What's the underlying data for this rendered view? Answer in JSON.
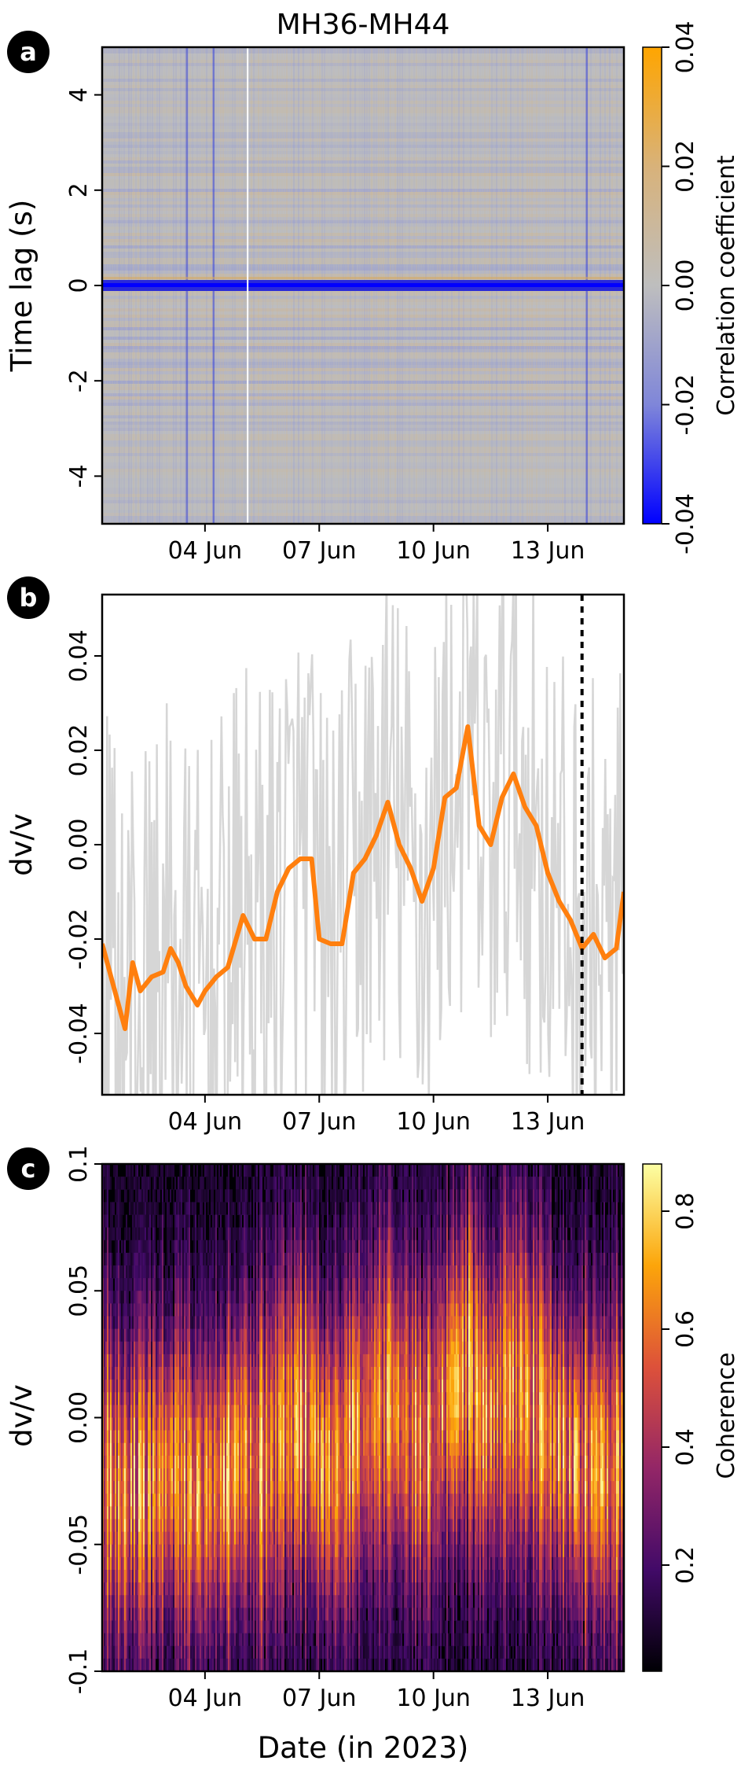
{
  "figure": {
    "title": "MH36-MH44",
    "xlabel": "Date (in 2023)",
    "date_ticks": [
      "04 Jun",
      "07 Jun",
      "10 Jun",
      "13 Jun"
    ],
    "date_tick_positions": [
      4,
      7,
      10,
      13
    ],
    "xlim": [
      1.3,
      15.0
    ]
  },
  "chart_data": [
    {
      "panel": "a",
      "type": "heatmap",
      "ylabel": "Time lag (s)",
      "ylim": [
        -5,
        5
      ],
      "yticks": [
        4,
        2,
        0,
        -2,
        -4
      ],
      "ytick_labels": [
        "4",
        "2",
        "0",
        "-2",
        "-4"
      ],
      "colorbar": {
        "label": "Correlation coefficient",
        "range": [
          -0.04,
          0.04
        ],
        "ticks": [
          "0.04",
          "0.02",
          "0.00",
          "-0.02",
          "-0.04"
        ],
        "tick_values": [
          0.04,
          0.02,
          0.0,
          -0.02,
          -0.04
        ],
        "colors": [
          "#0000ff",
          "#7f86d9",
          "#bebebe",
          "#d8b27a",
          "#ffa500"
        ]
      },
      "features": {
        "strong_negative_band_lag": 0.0,
        "gap_date": 5.1,
        "vertical_anomaly_dates": [
          3.5,
          4.2,
          14.0
        ]
      }
    },
    {
      "panel": "b",
      "type": "line",
      "ylabel": "dv/v",
      "ylim": [
        -0.053,
        0.053
      ],
      "yticks": [
        0.04,
        0.02,
        0.0,
        -0.02,
        -0.04
      ],
      "ytick_labels": [
        "0.04",
        "0.02",
        "0.00",
        "-0.02",
        "-0.04"
      ],
      "marker_line_date": 13.9,
      "series": [
        {
          "color": "#ff7f0e",
          "x": [
            1.3,
            1.6,
            1.9,
            2.1,
            2.3,
            2.6,
            2.9,
            3.1,
            3.3,
            3.5,
            3.8,
            4.0,
            4.3,
            4.6,
            5.0,
            5.3,
            5.6,
            5.9,
            6.2,
            6.5,
            6.8,
            7.0,
            7.3,
            7.6,
            7.9,
            8.2,
            8.5,
            8.8,
            9.1,
            9.4,
            9.7,
            10.0,
            10.3,
            10.6,
            10.9,
            11.2,
            11.5,
            11.8,
            12.1,
            12.4,
            12.7,
            13.0,
            13.3,
            13.6,
            13.9,
            14.2,
            14.5,
            14.8,
            15.0
          ],
          "values": [
            -0.021,
            -0.03,
            -0.039,
            -0.025,
            -0.031,
            -0.028,
            -0.027,
            -0.022,
            -0.025,
            -0.03,
            -0.034,
            -0.031,
            -0.028,
            -0.026,
            -0.015,
            -0.02,
            -0.02,
            -0.01,
            -0.005,
            -0.003,
            -0.003,
            -0.02,
            -0.021,
            -0.021,
            -0.006,
            -0.003,
            0.002,
            0.009,
            0.0,
            -0.005,
            -0.012,
            -0.005,
            0.01,
            0.012,
            0.025,
            0.004,
            0.0,
            0.01,
            0.015,
            0.008,
            0.004,
            -0.006,
            -0.012,
            -0.016,
            -0.022,
            -0.019,
            -0.024,
            -0.022,
            -0.01
          ]
        }
      ]
    },
    {
      "panel": "c",
      "type": "heatmap",
      "ylabel": "dv/v",
      "xlabel": "Date (in 2023)",
      "ylim": [
        -0.1,
        0.1
      ],
      "yticks": [
        0.1,
        0.05,
        0.0,
        -0.05,
        -0.1
      ],
      "ytick_labels": [
        "0.1",
        "0.05",
        "0.00",
        "-0.05",
        "-0.1"
      ],
      "colorbar": {
        "label": "Coherence",
        "range": [
          0.02,
          0.88
        ],
        "ticks": [
          "0.8",
          "0.6",
          "0.4",
          "0.2"
        ],
        "tick_values": [
          0.8,
          0.6,
          0.4,
          0.2
        ],
        "colors": [
          "#000004",
          "#420a68",
          "#932667",
          "#dd513a",
          "#fca50a",
          "#fcffa4"
        ]
      }
    }
  ],
  "panel_labels": [
    "a",
    "b",
    "c"
  ]
}
